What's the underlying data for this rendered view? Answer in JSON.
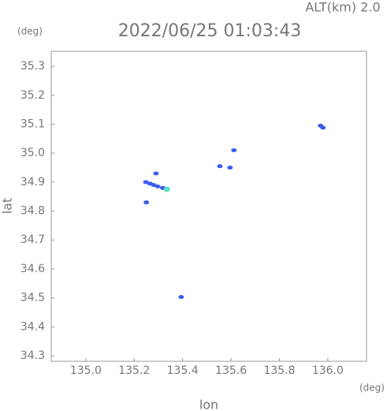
{
  "chart_data": {
    "type": "scatter",
    "altitude_label": "ALT(km) 2.0",
    "title": "2022/06/25 01:03:43",
    "y_unit": "(deg)",
    "x_unit": "(deg)",
    "xlabel": "lon",
    "ylabel": "lat",
    "xlim": [
      134.857,
      136.16
    ],
    "ylim": [
      34.281,
      35.352
    ],
    "xticks": [
      {
        "value": 135.0,
        "label": "135.0"
      },
      135.2,
      135.4,
      135.6,
      135.8,
      {
        "value": 136.0,
        "label": "136.0"
      }
    ],
    "yticks": [
      34.3,
      34.4,
      34.5,
      34.6,
      34.7,
      34.8,
      34.9,
      {
        "value": 35.0,
        "label": "35.0"
      },
      35.1,
      35.2,
      35.3
    ],
    "series": [
      {
        "color": "#3a5ef0",
        "x": [
          135.248,
          135.265,
          135.28,
          135.297,
          135.318,
          135.335,
          135.25,
          135.29,
          135.394,
          135.554,
          135.596,
          135.612,
          135.97,
          135.98
        ],
        "y": [
          34.9,
          34.895,
          34.89,
          34.885,
          34.88,
          34.875,
          34.83,
          34.93,
          34.503,
          34.955,
          34.95,
          35.01,
          35.095,
          35.088
        ]
      },
      {
        "color": "#5fe0c8",
        "x": [
          135.335
        ],
        "y": [
          34.875
        ]
      }
    ]
  }
}
